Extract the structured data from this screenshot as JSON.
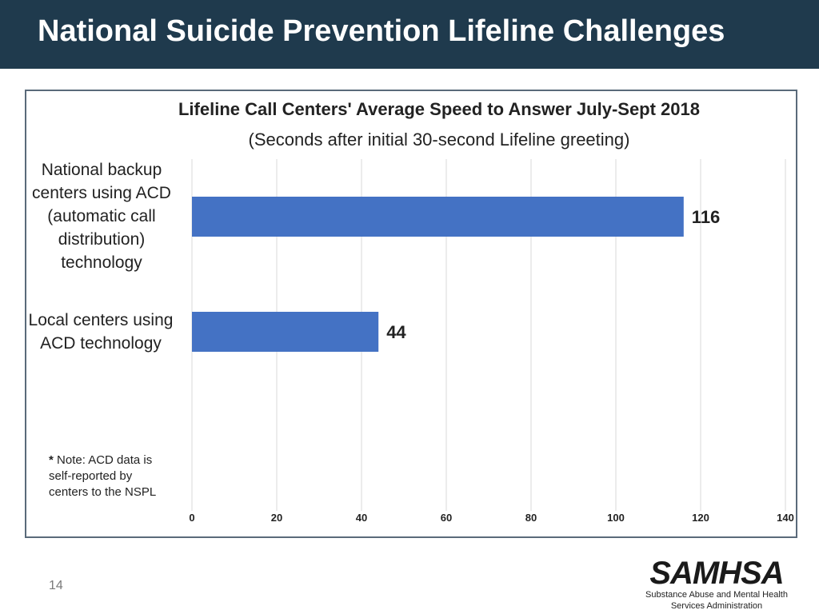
{
  "slide": {
    "title": "National Suicide Prevention Lifeline Challenges",
    "page_number": "14",
    "logo": {
      "name": "SAMHSA",
      "subtitle_line1": "Substance Abuse and Mental Health",
      "subtitle_line2": "Services Administration"
    },
    "note_star": "* ",
    "note_text": "Note: ACD data is self-reported by centers to the NSPL"
  },
  "colors": {
    "header_bg": "#1f3a4d",
    "bar": "#4472c4",
    "grid": "#d9d9d9"
  },
  "chart_data": {
    "type": "bar",
    "orientation": "horizontal",
    "title": "Lifeline Call Centers' Average Speed to Answer July-Sept 2018",
    "subtitle": "(Seconds after initial 30-second Lifeline greeting)",
    "categories": [
      [
        "National backup",
        "centers using ACD",
        "(automatic call",
        "distribution)",
        "technology"
      ],
      [
        "Local centers using",
        "ACD technology"
      ]
    ],
    "values": [
      116,
      44
    ],
    "value_labels": [
      "116",
      "44"
    ],
    "xlim": [
      0,
      140
    ],
    "xticks": [
      0,
      20,
      40,
      60,
      80,
      100,
      120,
      140
    ],
    "xtick_labels": [
      "0",
      "20",
      "40",
      "60",
      "80",
      "100",
      "120",
      "140"
    ],
    "grid": true,
    "legend": "none"
  }
}
